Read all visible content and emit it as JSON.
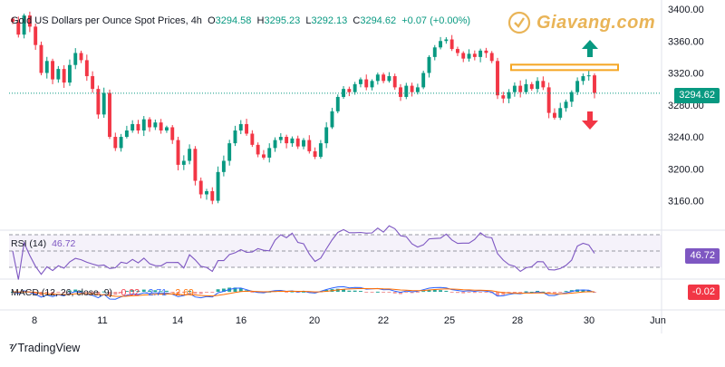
{
  "header": {
    "symbol": "Gold US Dollars per Ounce Spot Prices, 4h",
    "o_label": "O",
    "o_value": "3294.58",
    "h_label": "H",
    "h_value": "3295.23",
    "l_label": "L",
    "l_value": "3292.13",
    "c_label": "C",
    "c_value": "3294.62",
    "change": "+0.07 (+0.00%)"
  },
  "watermark": "Giavang.com",
  "rsi": {
    "label": "RSI (14)",
    "value": "46.72"
  },
  "macd": {
    "label": "MACD (12, 26, close, 9)",
    "v1": "-0.02",
    "v2": "-2.71",
    "v3": "-2.69"
  },
  "price_badge": "3294.62",
  "rsi_badge": "46.72",
  "macd_badge": "-0.02",
  "footer": {
    "brand": "TradingView"
  },
  "colors": {
    "up": "#089981",
    "down": "#f23645",
    "resistance": "#f5a623",
    "rsi": "#7e57c2"
  },
  "chart_data": {
    "type": "candlestick",
    "title": "Gold US Dollars per Ounce Spot Prices, 4h",
    "ylim": [
      3130,
      3400
    ],
    "y_ticks": [
      "3400.00",
      "3360.00",
      "3320.00",
      "3280.00",
      "3240.00",
      "3200.00",
      "3160.00"
    ],
    "x_ticks": [
      "8",
      "11",
      "14",
      "16",
      "20",
      "22",
      "25",
      "28",
      "30",
      "Jun"
    ],
    "last_price": 3294.62,
    "resistance_level": 3327,
    "annotations": [
      "up-arrow",
      "down-arrow"
    ],
    "closes": [
      3384,
      3368,
      3392,
      3378,
      3355,
      3320,
      3335,
      3312,
      3325,
      3308,
      3330,
      3345,
      3336,
      3316,
      3300,
      3268,
      3295,
      3240,
      3226,
      3240,
      3248,
      3256,
      3248,
      3262,
      3252,
      3258,
      3248,
      3252,
      3236,
      3205,
      3210,
      3225,
      3185,
      3168,
      3172,
      3160,
      3196,
      3210,
      3232,
      3248,
      3256,
      3244,
      3230,
      3218,
      3214,
      3226,
      3236,
      3240,
      3232,
      3238,
      3228,
      3236,
      3222,
      3215,
      3232,
      3252,
      3272,
      3290,
      3300,
      3296,
      3306,
      3312,
      3302,
      3310,
      3318,
      3310,
      3316,
      3302,
      3290,
      3304,
      3296,
      3302,
      3320,
      3340,
      3352,
      3360,
      3362,
      3350,
      3345,
      3338,
      3344,
      3340,
      3348,
      3345,
      3335,
      3292,
      3288,
      3296,
      3304,
      3296,
      3306,
      3300,
      3310,
      3302,
      3270,
      3264,
      3276,
      3284,
      3296,
      3310,
      3316,
      3317,
      3295
    ]
  },
  "rsi_levels": {
    "upper": 70,
    "mid": 50,
    "lower": 30
  }
}
